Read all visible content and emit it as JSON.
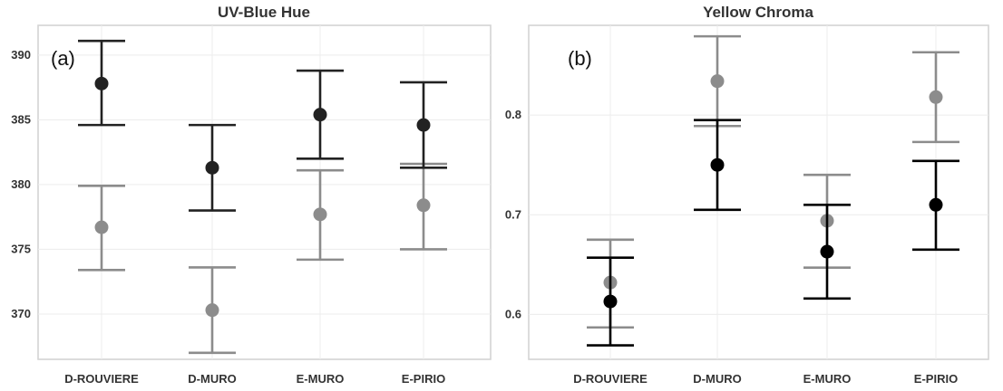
{
  "chart_data": [
    {
      "type": "scatter",
      "panel_label": "(a)",
      "title": "UV-Blue Hue",
      "xlabel": "",
      "ylabel": "",
      "categories": [
        "D-ROUVIERE",
        "D-MURO",
        "E-MURO",
        "E-PIRIO"
      ],
      "ylim": [
        366.5,
        392.3
      ],
      "yticks": [
        "370",
        "375",
        "380",
        "385",
        "390"
      ],
      "grid": true,
      "legend": "none",
      "series": [
        {
          "color": "#222222",
          "values": [
            387.8,
            381.3,
            385.4,
            384.6
          ],
          "error_low": [
            384.6,
            378.0,
            382.0,
            381.3
          ],
          "error_high": [
            391.1,
            384.6,
            388.8,
            387.9
          ]
        },
        {
          "color": "#8c8c8c",
          "values": [
            376.7,
            370.3,
            377.7,
            378.4
          ],
          "error_low": [
            373.4,
            367.0,
            374.2,
            375.0
          ],
          "error_high": [
            379.9,
            373.6,
            381.1,
            381.6
          ]
        }
      ]
    },
    {
      "type": "scatter",
      "panel_label": "(b)",
      "title": "Yellow Chroma",
      "xlabel": "",
      "ylabel": "",
      "categories": [
        "D-ROUVIERE",
        "D-MURO",
        "E-MURO",
        "E-PIRIO"
      ],
      "ylim": [
        0.555,
        0.89
      ],
      "yticks": [
        "0.6",
        "0.7",
        "0.8"
      ],
      "grid": true,
      "legend": "none",
      "series": [
        {
          "color": "#000000",
          "values": [
            0.613,
            0.75,
            0.663,
            0.71
          ],
          "error_low": [
            0.569,
            0.705,
            0.616,
            0.665
          ],
          "error_high": [
            0.657,
            0.795,
            0.71,
            0.754
          ]
        },
        {
          "color": "#8c8c8c",
          "values": [
            0.632,
            0.834,
            0.694,
            0.818
          ],
          "error_low": [
            0.587,
            0.789,
            0.647,
            0.773
          ],
          "error_high": [
            0.675,
            0.879,
            0.74,
            0.863
          ]
        }
      ]
    }
  ]
}
